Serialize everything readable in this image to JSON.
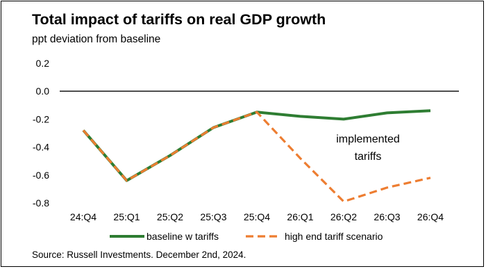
{
  "title": "Total impact of tariffs on real GDP growth",
  "subtitle": "ppt deviation from baseline",
  "source": "Source: Russell Investments. December 2nd, 2024.",
  "annotation": [
    "implemented",
    "tariffs"
  ],
  "colors": {
    "baseline": "#2e7d32",
    "high_end": "#ed7d31",
    "zero_line": "#000000"
  },
  "chart_data": {
    "type": "line",
    "categories": [
      "24:Q4",
      "25:Q1",
      "25:Q2",
      "25:Q3",
      "25:Q4",
      "26:Q1",
      "26:Q2",
      "26:Q3",
      "26:Q4"
    ],
    "y_ticks": [
      "0.2",
      "0.0",
      "-0.2",
      "-0.4",
      "-0.6",
      "-0.8"
    ],
    "ylim": [
      -0.8,
      0.2
    ],
    "grid": false,
    "legend_position": "bottom",
    "series": [
      {
        "name": "baseline w tariffs",
        "style": "solid",
        "color": "#2e7d32",
        "values": [
          -0.28,
          -0.64,
          -0.46,
          -0.26,
          -0.15,
          -0.18,
          -0.2,
          -0.155,
          -0.14
        ]
      },
      {
        "name": "high end tariff scenario",
        "style": "dashed",
        "color": "#ed7d31",
        "values": [
          -0.28,
          -0.64,
          -0.46,
          -0.26,
          -0.15,
          -0.48,
          -0.79,
          -0.69,
          -0.62
        ]
      }
    ]
  }
}
